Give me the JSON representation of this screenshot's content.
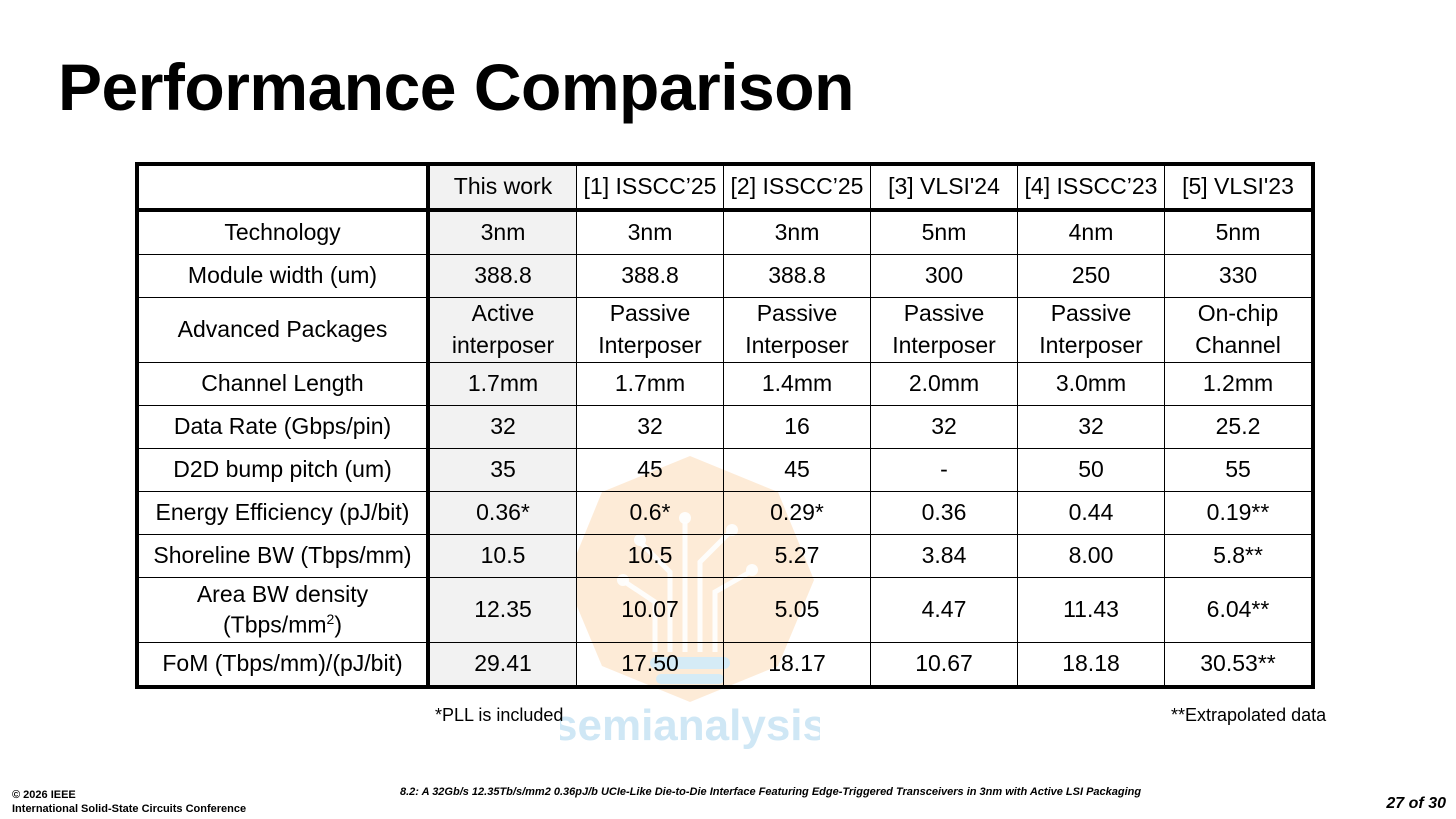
{
  "slide": {
    "title": "Performance Comparison",
    "watermark_text": "semianalysis"
  },
  "table": {
    "columns": [
      "",
      "This work",
      "[1] ISSCC’25",
      "[2] ISSCC’25",
      "[3] VLSI'24",
      "[4] ISSCC’23",
      "[5] VLSI'23"
    ],
    "rows": [
      {
        "label": "Technology",
        "cells": [
          "3nm",
          "3nm",
          "3nm",
          "5nm",
          "4nm",
          "5nm"
        ]
      },
      {
        "label": "Module width (um)",
        "cells": [
          "388.8",
          "388.8",
          "388.8",
          "300",
          "250",
          "330"
        ]
      },
      {
        "label": "Advanced Packages",
        "cells": [
          [
            "Active",
            "interposer"
          ],
          [
            "Passive",
            "Interposer"
          ],
          [
            "Passive",
            "Interposer"
          ],
          [
            "Passive",
            "Interposer"
          ],
          [
            "Passive",
            "Interposer"
          ],
          [
            "On-chip",
            "Channel"
          ]
        ]
      },
      {
        "label": "Channel Length",
        "cells": [
          "1.7mm",
          "1.7mm",
          "1.4mm",
          "2.0mm",
          "3.0mm",
          "1.2mm"
        ]
      },
      {
        "label": "Data Rate (Gbps/pin)",
        "cells": [
          "32",
          "32",
          "16",
          "32",
          "32",
          "25.2"
        ]
      },
      {
        "label": "D2D bump pitch (um)",
        "cells": [
          "35",
          "45",
          "45",
          "-",
          "50",
          "55"
        ]
      },
      {
        "label": "Energy Efficiency (pJ/bit)",
        "cells": [
          "0.36*",
          "0.6*",
          "0.29*",
          "0.36",
          "0.44",
          "0.19**"
        ]
      },
      {
        "label": "Shoreline BW (Tbps/mm)",
        "cells": [
          "10.5",
          "10.5",
          "5.27",
          "3.84",
          "8.00",
          "5.8**"
        ]
      },
      {
        "label": "Area BW density",
        "label_line2": "(Tbps/mm",
        "label_sup": "2",
        "label_close": ")",
        "cells": [
          "12.35",
          "10.07",
          "5.05",
          "4.47",
          "11.43",
          "6.04**"
        ]
      },
      {
        "label": "FoM (Tbps/mm)/(pJ/bit)",
        "cells": [
          "29.41",
          "17.50",
          "18.17",
          "10.67",
          "18.18",
          "30.53**"
        ]
      }
    ]
  },
  "notes": {
    "pll": "*PLL is included",
    "extrapolated": "**Extrapolated data"
  },
  "footer": {
    "copyright": "© 2026 IEEE",
    "conference": "International Solid-State Circuits Conference",
    "paper": "8.2: A 32Gb/s 12.35Tb/s/mm2 0.36pJ/b UCIe-Like Die-to-Die Interface Featuring Edge-Triggered Transceivers in 3nm with Active LSI Packaging",
    "page": "27 of 30"
  },
  "colors": {
    "highlight_column": "#f2f2f2",
    "watermark_orange": "#fbd9b3",
    "watermark_blue": "#bfe0f2"
  }
}
